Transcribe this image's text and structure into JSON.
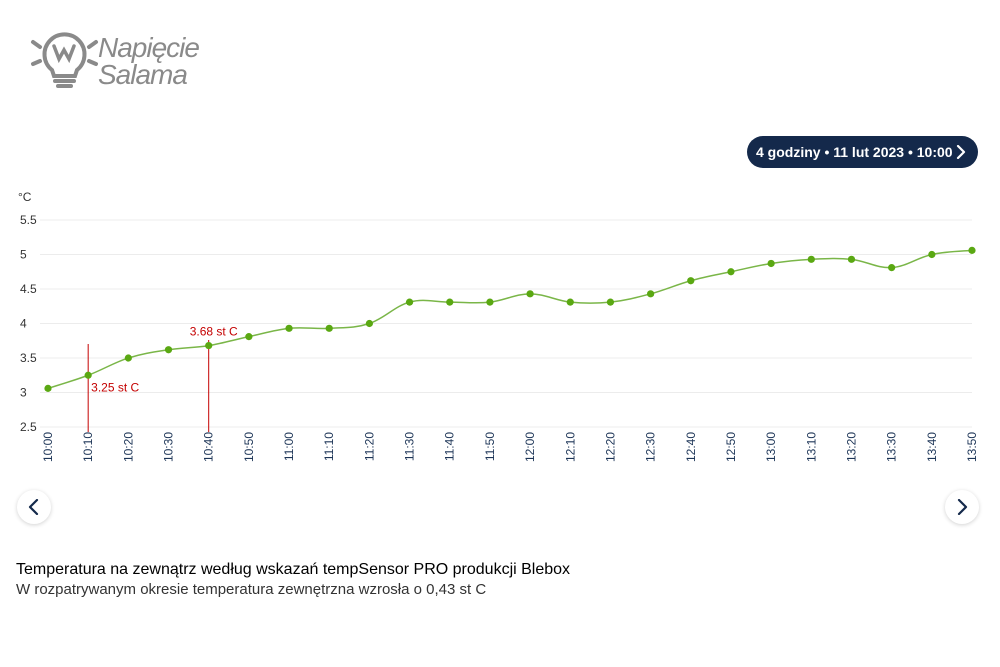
{
  "logo": {
    "line1": "Napięcie",
    "line2": "Salama"
  },
  "range_button": {
    "label": "4 godziny • 11 lut 2023 • 10:00"
  },
  "caption": {
    "title": "Temperatura na zewnątrz według wskazań tempSensor PRO produkcji Blebox",
    "subtitle": "W rozpatrywanym okresie temperatura zewnętrzna wzrosła o 0,43 st C"
  },
  "colors": {
    "line": "#7ab648",
    "point": "#5aa812",
    "marker": "#c40000",
    "axis_text": "#1d3557",
    "button": "#14294b"
  },
  "chart_data": {
    "type": "line",
    "title": "",
    "ylabel": "°C",
    "xlabel": "",
    "ylim": [
      2.5,
      5.5
    ],
    "yticks": [
      "5.5",
      "5",
      "4.5",
      "4",
      "3.5",
      "3",
      "2.5"
    ],
    "grid": true,
    "x": [
      "10:00",
      "10:10",
      "10:20",
      "10:30",
      "10:40",
      "10:50",
      "11:00",
      "11:10",
      "11:20",
      "11:30",
      "11:40",
      "11:50",
      "12:00",
      "12:10",
      "12:20",
      "12:30",
      "12:40",
      "12:50",
      "13:00",
      "13:10",
      "13:20",
      "13:30",
      "13:40",
      "13:50"
    ],
    "series": [
      {
        "values": [
          3.06,
          3.25,
          3.5,
          3.62,
          3.68,
          3.81,
          3.93,
          3.93,
          4.0,
          4.31,
          4.31,
          4.31,
          4.43,
          4.31,
          4.31,
          4.43,
          4.62,
          4.75,
          4.87,
          4.93,
          4.93,
          4.81,
          5.0,
          5.06
        ]
      }
    ],
    "annotations": [
      {
        "x": "10:10",
        "label": "3.25 st C"
      },
      {
        "x": "10:40",
        "label": "3.68 st C"
      }
    ]
  }
}
